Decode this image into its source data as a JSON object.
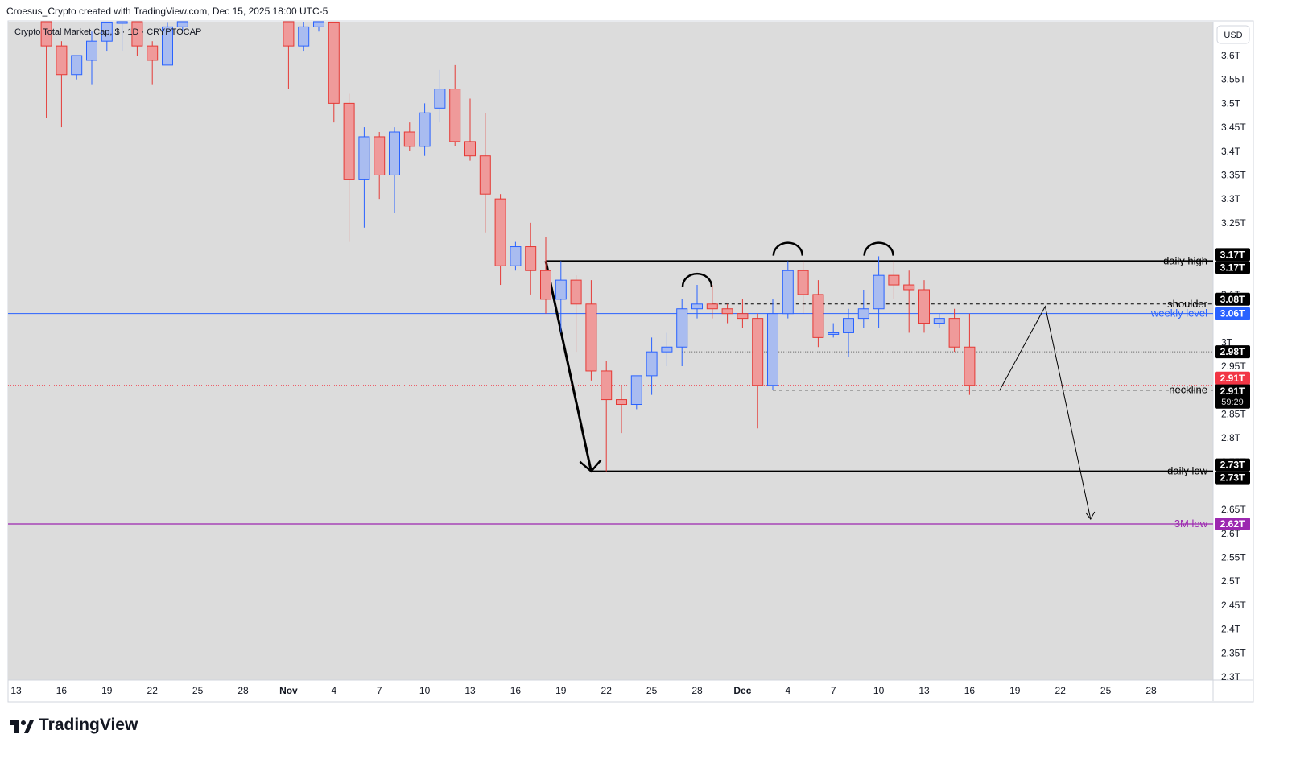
{
  "header": {
    "attribution": "Croesus_Crypto created with TradingView.com, Dec 15, 2025 18:00 UTC-5"
  },
  "symbol": {
    "title": "Crypto Total Market Cap, $ · 1D · CRYPTOCAP"
  },
  "brand": {
    "name": "TradingView"
  },
  "colors": {
    "background": "#dcdcdc",
    "bull_body": "#a9bcf0",
    "bull_border": "#2962ff",
    "bear_body": "#ef9a9a",
    "bear_border": "#e53935",
    "weekly": "#2962ff",
    "low3m": "#9c27b0",
    "current": "#f23645"
  },
  "chart_data": {
    "type": "candlestick",
    "currency_label": "USD",
    "y_ticks": [
      "3.6T",
      "3.55T",
      "3.5T",
      "3.45T",
      "3.4T",
      "3.35T",
      "3.3T",
      "3.25T",
      "3.15T",
      "3.1T",
      "3T",
      "2.95T",
      "2.85T",
      "2.8T",
      "2.75T",
      "2.65T",
      "2.6T",
      "2.55T",
      "2.5T",
      "2.45T",
      "2.4T",
      "2.35T",
      "2.3T"
    ],
    "x_ticks": [
      "13",
      "16",
      "19",
      "22",
      "25",
      "28",
      "Nov",
      "4",
      "7",
      "10",
      "13",
      "16",
      "19",
      "22",
      "25",
      "28",
      "Dec",
      "4",
      "7",
      "10",
      "13",
      "16",
      "19",
      "22",
      "25",
      "28"
    ],
    "candles": [
      {
        "date": "Oct 15",
        "o": 3.72,
        "h": 3.77,
        "l": 3.47,
        "c": 3.62
      },
      {
        "date": "Oct 16",
        "o": 3.62,
        "h": 3.63,
        "l": 3.45,
        "c": 3.56
      },
      {
        "date": "Oct 17",
        "o": 3.56,
        "h": 3.6,
        "l": 3.55,
        "c": 3.6
      },
      {
        "date": "Oct 18",
        "o": 3.59,
        "h": 3.65,
        "l": 3.54,
        "c": 3.63
      },
      {
        "date": "Oct 19",
        "o": 3.63,
        "h": 3.68,
        "l": 3.61,
        "c": 3.67
      },
      {
        "date": "Oct 20",
        "o": 3.67,
        "h": 3.71,
        "l": 3.61,
        "c": 3.71
      },
      {
        "date": "Oct 21",
        "o": 3.71,
        "h": 3.74,
        "l": 3.6,
        "c": 3.62
      },
      {
        "date": "Oct 22",
        "o": 3.62,
        "h": 3.63,
        "l": 3.54,
        "c": 3.59
      },
      {
        "date": "Oct 23",
        "o": 3.58,
        "h": 3.67,
        "l": 3.58,
        "c": 3.66
      },
      {
        "date": "Oct 24",
        "o": 3.66,
        "h": 3.7,
        "l": 3.65,
        "c": 3.69
      },
      {
        "date": "Oct 31",
        "o": 3.68,
        "h": 3.7,
        "l": 3.53,
        "c": 3.62
      },
      {
        "date": "Nov 1",
        "o": 3.62,
        "h": 3.68,
        "l": 3.61,
        "c": 3.66
      },
      {
        "date": "Nov 2",
        "o": 3.66,
        "h": 3.69,
        "l": 3.65,
        "c": 3.68
      },
      {
        "date": "Nov 3",
        "o": 3.67,
        "h": 3.69,
        "l": 3.46,
        "c": 3.5
      },
      {
        "date": "Nov 4",
        "o": 3.5,
        "h": 3.52,
        "l": 3.21,
        "c": 3.34
      },
      {
        "date": "Nov 5",
        "o": 3.34,
        "h": 3.45,
        "l": 3.24,
        "c": 3.43
      },
      {
        "date": "Nov 6",
        "o": 3.43,
        "h": 3.44,
        "l": 3.3,
        "c": 3.35
      },
      {
        "date": "Nov 7",
        "o": 3.35,
        "h": 3.45,
        "l": 3.27,
        "c": 3.44
      },
      {
        "date": "Nov 8",
        "o": 3.44,
        "h": 3.46,
        "l": 3.4,
        "c": 3.41
      },
      {
        "date": "Nov 9",
        "o": 3.41,
        "h": 3.5,
        "l": 3.39,
        "c": 3.48
      },
      {
        "date": "Nov 10",
        "o": 3.49,
        "h": 3.57,
        "l": 3.46,
        "c": 3.53
      },
      {
        "date": "Nov 11",
        "o": 3.53,
        "h": 3.58,
        "l": 3.41,
        "c": 3.42
      },
      {
        "date": "Nov 12",
        "o": 3.42,
        "h": 3.51,
        "l": 3.38,
        "c": 3.39
      },
      {
        "date": "Nov 13",
        "o": 3.39,
        "h": 3.48,
        "l": 3.23,
        "c": 3.31
      },
      {
        "date": "Nov 14",
        "o": 3.3,
        "h": 3.31,
        "l": 3.12,
        "c": 3.16
      },
      {
        "date": "Nov 15",
        "o": 3.16,
        "h": 3.21,
        "l": 3.15,
        "c": 3.2
      },
      {
        "date": "Nov 16",
        "o": 3.2,
        "h": 3.25,
        "l": 3.1,
        "c": 3.15
      },
      {
        "date": "Nov 17",
        "o": 3.15,
        "h": 3.22,
        "l": 3.06,
        "c": 3.09
      },
      {
        "date": "Nov 18",
        "o": 3.09,
        "h": 3.17,
        "l": 3.02,
        "c": 3.13
      },
      {
        "date": "Nov 19",
        "o": 3.13,
        "h": 3.14,
        "l": 2.98,
        "c": 3.08
      },
      {
        "date": "Nov 20",
        "o": 3.08,
        "h": 3.13,
        "l": 2.92,
        "c": 2.94
      },
      {
        "date": "Nov 21",
        "o": 2.94,
        "h": 2.96,
        "l": 2.73,
        "c": 2.88
      },
      {
        "date": "Nov 22",
        "o": 2.88,
        "h": 2.91,
        "l": 2.81,
        "c": 2.87
      },
      {
        "date": "Nov 23",
        "o": 2.87,
        "h": 2.93,
        "l": 2.86,
        "c": 2.93
      },
      {
        "date": "Nov 24",
        "o": 2.93,
        "h": 3.01,
        "l": 2.89,
        "c": 2.98
      },
      {
        "date": "Nov 25",
        "o": 2.98,
        "h": 3.02,
        "l": 2.95,
        "c": 2.99
      },
      {
        "date": "Nov 26",
        "o": 2.99,
        "h": 3.09,
        "l": 2.95,
        "c": 3.07
      },
      {
        "date": "Nov 27",
        "o": 3.07,
        "h": 3.12,
        "l": 3.05,
        "c": 3.08
      },
      {
        "date": "Nov 28",
        "o": 3.08,
        "h": 3.12,
        "l": 3.05,
        "c": 3.07
      },
      {
        "date": "Nov 29",
        "o": 3.07,
        "h": 3.08,
        "l": 3.04,
        "c": 3.06
      },
      {
        "date": "Nov 30",
        "o": 3.06,
        "h": 3.09,
        "l": 3.03,
        "c": 3.05
      },
      {
        "date": "Dec 1",
        "o": 3.05,
        "h": 3.06,
        "l": 2.82,
        "c": 2.91
      },
      {
        "date": "Dec 2",
        "o": 2.91,
        "h": 3.09,
        "l": 2.9,
        "c": 3.06
      },
      {
        "date": "Dec 3",
        "o": 3.06,
        "h": 3.17,
        "l": 3.05,
        "c": 3.15
      },
      {
        "date": "Dec 4",
        "o": 3.15,
        "h": 3.17,
        "l": 3.06,
        "c": 3.1
      },
      {
        "date": "Dec 5",
        "o": 3.1,
        "h": 3.13,
        "l": 2.99,
        "c": 3.01
      },
      {
        "date": "Dec 6",
        "o": 3.02,
        "h": 3.04,
        "l": 3.01,
        "c": 3.02
      },
      {
        "date": "Dec 7",
        "o": 3.02,
        "h": 3.07,
        "l": 2.97,
        "c": 3.05
      },
      {
        "date": "Dec 8",
        "o": 3.05,
        "h": 3.11,
        "l": 3.03,
        "c": 3.07
      },
      {
        "date": "Dec 9",
        "o": 3.07,
        "h": 3.18,
        "l": 3.03,
        "c": 3.14
      },
      {
        "date": "Dec 10",
        "o": 3.14,
        "h": 3.17,
        "l": 3.09,
        "c": 3.12
      },
      {
        "date": "Dec 11",
        "o": 3.12,
        "h": 3.15,
        "l": 3.02,
        "c": 3.11
      },
      {
        "date": "Dec 12",
        "o": 3.11,
        "h": 3.13,
        "l": 3.02,
        "c": 3.04
      },
      {
        "date": "Dec 13",
        "o": 3.04,
        "h": 3.06,
        "l": 3.03,
        "c": 3.05
      },
      {
        "date": "Dec 14",
        "o": 3.05,
        "h": 3.07,
        "l": 2.98,
        "c": 2.99
      },
      {
        "date": "Dec 15",
        "o": 2.99,
        "h": 3.06,
        "l": 2.89,
        "c": 2.91
      }
    ],
    "levels": [
      {
        "label": "daily high",
        "value": 3.17,
        "tags": [
          "3.17T",
          "3.17T"
        ]
      },
      {
        "label": "shoulder",
        "value": 3.08,
        "tags": [
          "3.08T"
        ]
      },
      {
        "label": "weekly level",
        "value": 3.06,
        "tags": [
          "3.06T"
        ]
      },
      {
        "label": "",
        "value": 2.98,
        "tags": [
          "2.98T"
        ]
      },
      {
        "label": "neckline",
        "value": 2.9,
        "tags": [
          "2.9T"
        ]
      },
      {
        "label": "daily low",
        "value": 2.73,
        "tags": [
          "2.73T",
          "2.73T"
        ]
      },
      {
        "label": "3M low",
        "value": 2.62,
        "tags": [
          "2.62T"
        ]
      }
    ],
    "current_price": {
      "value": 2.91,
      "tags": [
        "2.91T",
        "2.91T"
      ],
      "countdown": "59:29"
    }
  }
}
